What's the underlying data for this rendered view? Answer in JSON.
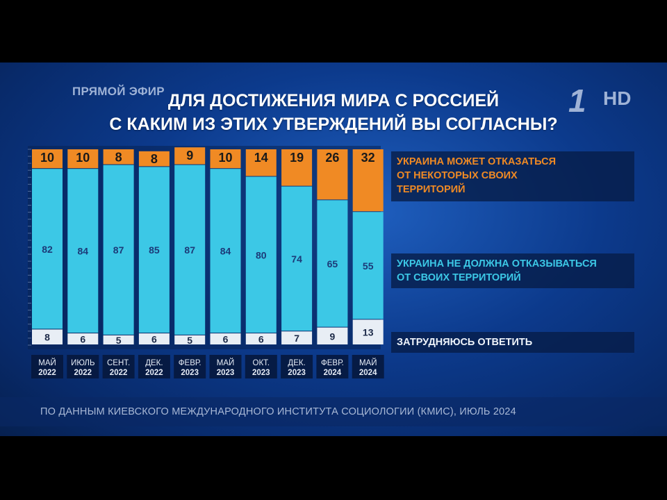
{
  "header": {
    "live_label": "ПРЯМОЙ ЭФИР",
    "title_line1": "ДЛЯ ДОСТИЖЕНИЯ МИРА С РОССИЕЙ",
    "title_line2": "С КАКИМ ИЗ ЭТИХ УТВЕРЖДЕНИЙ  ВЫ СОГЛАСНЫ?",
    "logo_number": "1",
    "logo_hd": "HD"
  },
  "chart_data": {
    "type": "bar",
    "stacked": true,
    "categories": [
      [
        "МАЙ",
        "2022"
      ],
      [
        "ИЮЛЬ",
        "2022"
      ],
      [
        "СЕНТ.",
        "2022"
      ],
      [
        "ДЕК.",
        "2022"
      ],
      [
        "ФЕВР.",
        "2023"
      ],
      [
        "МАЙ",
        "2023"
      ],
      [
        "ОКТ.",
        "2023"
      ],
      [
        "ДЕК.",
        "2023"
      ],
      [
        "ФЕВР.",
        "2024"
      ],
      [
        "МАЙ",
        "2024"
      ]
    ],
    "series": [
      {
        "name": "УКРАИНА МОЖЕТ ОТКАЗАТЬСЯ ОТ НЕКОТОРЫХ СВОИХ ТЕРРИТОРИЙ",
        "color": "#f08a24",
        "label_color": "#1a1a1a",
        "values": [
          10,
          10,
          8,
          8,
          9,
          10,
          14,
          19,
          26,
          32
        ]
      },
      {
        "name": "УКРАИНА НЕ ДОЛЖНА ОТКАЗЫВАТЬСЯ ОТ СВОИХ ТЕРРИТОРИЙ",
        "color": "#3cc8e6",
        "label_color": "#1c3a78",
        "values": [
          82,
          84,
          87,
          85,
          87,
          84,
          80,
          74,
          65,
          55
        ]
      },
      {
        "name": "ЗАТРУДНЯЮСЬ ОТВЕТИТЬ",
        "color": "#e8eef5",
        "label_color": "#1c2a48",
        "values": [
          8,
          6,
          5,
          6,
          5,
          6,
          6,
          7,
          9,
          13
        ]
      }
    ],
    "ylim": [
      0,
      100
    ],
    "grid": false
  },
  "legend": {
    "give_line1": "УКРАИНА МОЖЕТ ОТКАЗАТЬСЯ",
    "give_line2": "ОТ НЕКОТОРЫХ СВОИХ",
    "give_line3": "ТЕРРИТОРИЙ",
    "keep_line1": "УКРАИНА НЕ ДОЛЖНА ОТКАЗЫВАТЬСЯ",
    "keep_line2": "ОТ СВОИХ ТЕРРИТОРИЙ",
    "unsure_line1": "ЗАТРУДНЯЮСЬ ОТВЕТИТЬ"
  },
  "footer": {
    "source": "ПО ДАННЫМ КИЕВСКОГО МЕЖДУНАРОДНОГО ИНСТИТУТА СОЦИОЛОГИИ (КМИС), ИЮЛЬ 2024"
  }
}
